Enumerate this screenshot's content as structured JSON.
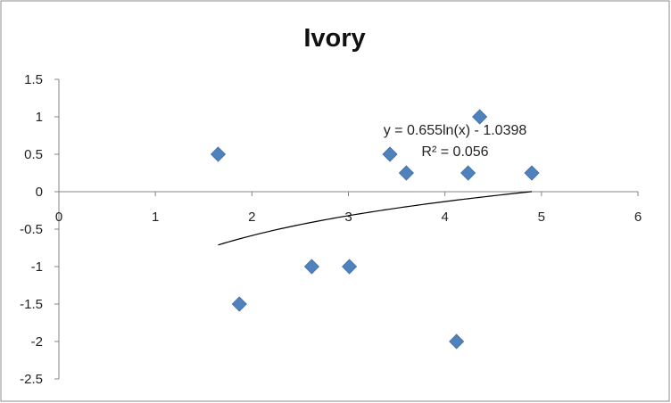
{
  "chart_data": {
    "type": "scatter",
    "title": "Ivory",
    "xlabel": "",
    "ylabel": "",
    "xlim": [
      0,
      6
    ],
    "ylim": [
      -2.5,
      1.5
    ],
    "x_ticks": [
      "0",
      "1",
      "2",
      "3",
      "4",
      "5",
      "6"
    ],
    "y_ticks": [
      "1.5",
      "1",
      "0.5",
      "0",
      "-0.5",
      "-1",
      "-1.5",
      "-2",
      "-2.5"
    ],
    "grid": false,
    "legend": "none",
    "series": [
      {
        "marker": "diamond",
        "color": "#4F81BD",
        "points": [
          {
            "x": 1.65,
            "y": 0.5
          },
          {
            "x": 1.87,
            "y": -1.5
          },
          {
            "x": 2.62,
            "y": -1.0
          },
          {
            "x": 3.01,
            "y": -1.0
          },
          {
            "x": 3.43,
            "y": 0.5
          },
          {
            "x": 3.6,
            "y": 0.25
          },
          {
            "x": 4.12,
            "y": -2.0
          },
          {
            "x": 4.24,
            "y": 0.25
          },
          {
            "x": 4.36,
            "y": 1.0
          },
          {
            "x": 4.9,
            "y": 0.25
          }
        ]
      }
    ],
    "trendline": {
      "type": "logarithmic",
      "a": 0.655,
      "b": -1.0398,
      "x_range": [
        1.65,
        4.9
      ],
      "color": "#000000",
      "equation_label": "y = 0.655ln(x) - 1.0398",
      "r2_label": "R² = 0.056"
    }
  }
}
